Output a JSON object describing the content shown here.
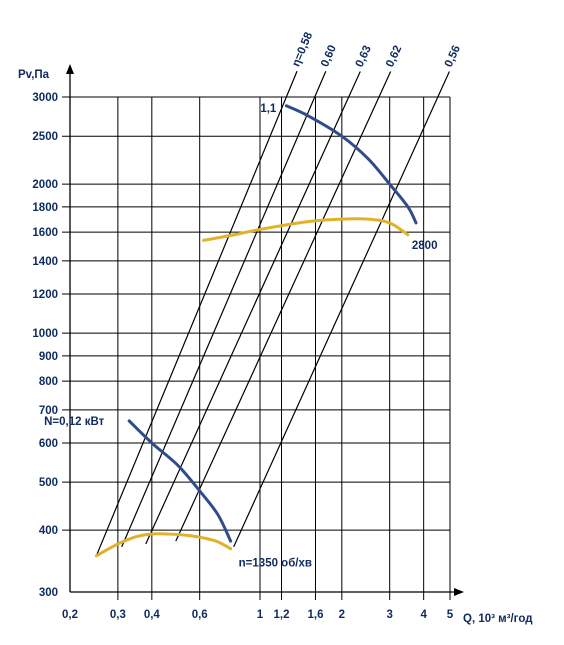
{
  "chart_data": {
    "type": "line",
    "title": "",
    "xlabel": "Q, 10³ м³/год",
    "ylabel": "Pv,Па",
    "x_scale": "log",
    "y_scale": "log",
    "xlim": [
      0.2,
      5
    ],
    "ylim": [
      300,
      3000
    ],
    "grid": true,
    "x_ticks": [
      0.2,
      0.3,
      0.4,
      0.6,
      1,
      1.2,
      1.6,
      2,
      3,
      4,
      5
    ],
    "x_tick_labels": [
      "0,2",
      "0,3",
      "0,4",
      "0,6",
      "1",
      "1,2",
      "1,6",
      "2",
      "3",
      "4",
      "5"
    ],
    "y_ticks": [
      300,
      400,
      500,
      600,
      700,
      800,
      900,
      1000,
      1200,
      1400,
      1600,
      1800,
      2000,
      2500,
      3000
    ],
    "y_tick_labels": [
      "300",
      "400",
      "500",
      "600",
      "700",
      "800",
      "900",
      "1000",
      "1200",
      "1400",
      "1600",
      "1800",
      "2000",
      "2500",
      "3000"
    ],
    "efficiency_lines": [
      {
        "label": "η=0,58",
        "x": [
          0.25,
          1.25
        ],
        "y": [
          355,
          3000
        ]
      },
      {
        "label": "0,60",
        "x": [
          0.31,
          1.59
        ],
        "y": [
          370,
          3000
        ]
      },
      {
        "label": "0,63",
        "x": [
          0.38,
          2.12
        ],
        "y": [
          375,
          3000
        ]
      },
      {
        "label": "0,62",
        "x": [
          0.49,
          2.74
        ],
        "y": [
          380,
          3000
        ]
      },
      {
        "label": "0,56",
        "x": [
          0.8,
          4.51
        ],
        "y": [
          370,
          3000
        ]
      }
    ],
    "series": [
      {
        "name": "N=0,12 кВт",
        "kind": "pressure",
        "x": [
          0.33,
          0.4,
          0.5,
          0.6,
          0.7,
          0.78
        ],
        "y": [
          665,
          600,
          540,
          480,
          430,
          380
        ]
      },
      {
        "name": "n=1350 об/хв",
        "kind": "power",
        "x": [
          0.25,
          0.3,
          0.35,
          0.4,
          0.45,
          0.55,
          0.68,
          0.78
        ],
        "y": [
          355,
          375,
          388,
          393,
          393,
          390,
          381,
          367
        ]
      },
      {
        "name": "1,1",
        "kind": "pressure",
        "x": [
          1.25,
          1.5,
          2.0,
          2.5,
          3.0,
          3.5,
          3.75
        ],
        "y": [
          2880,
          2750,
          2500,
          2250,
          2000,
          1800,
          1670
        ]
      },
      {
        "name": "2800",
        "kind": "power",
        "x": [
          0.62,
          0.8,
          1.0,
          1.5,
          2.0,
          2.5,
          3.0,
          3.5
        ],
        "y": [
          1540,
          1580,
          1620,
          1680,
          1700,
          1700,
          1670,
          1580
        ]
      }
    ],
    "colors": {
      "pressure_curve": "#2f4d8a",
      "power_curve": "#e0b22c",
      "text": "#0d2b5e",
      "lines": "#000000"
    }
  }
}
